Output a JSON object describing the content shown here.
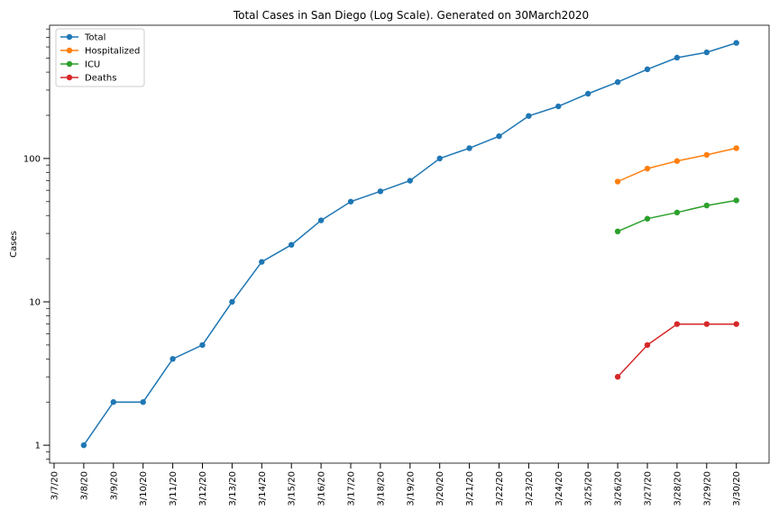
{
  "chart_data": {
    "type": "line",
    "title": "Total Cases in San Diego (Log Scale). Generated on 30March2020",
    "xlabel": "",
    "ylabel": "Cases",
    "yscale": "log",
    "ylim": [
      0.75,
      850
    ],
    "categories": [
      "3/7/20",
      "3/8/20",
      "3/9/20",
      "3/10/20",
      "3/11/20",
      "3/12/20",
      "3/13/20",
      "3/14/20",
      "3/15/20",
      "3/16/20",
      "3/17/20",
      "3/18/20",
      "3/19/20",
      "3/20/20",
      "3/21/20",
      "3/22/20",
      "3/23/20",
      "3/24/20",
      "3/25/20",
      "3/26/20",
      "3/27/20",
      "3/28/20",
      "3/29/20",
      "3/30/20"
    ],
    "yticks": [
      {
        "value": 1,
        "label": "1"
      },
      {
        "value": 10,
        "label": "10"
      },
      {
        "value": 100,
        "label": "100"
      }
    ],
    "legend_position": "top-left",
    "series": [
      {
        "name": "Total",
        "color": "#1f77b4",
        "values": [
          null,
          1,
          2,
          2,
          4,
          5,
          10,
          19,
          25,
          37,
          50,
          59,
          70,
          100,
          118,
          143,
          198,
          231,
          283,
          341,
          419,
          505,
          550,
          640
        ]
      },
      {
        "name": "Hospitalized",
        "color": "#ff7f0e",
        "values": [
          null,
          null,
          null,
          null,
          null,
          null,
          null,
          null,
          null,
          null,
          null,
          null,
          null,
          null,
          null,
          null,
          null,
          null,
          null,
          69,
          85,
          96,
          106,
          118
        ]
      },
      {
        "name": "ICU",
        "color": "#2ca02c",
        "values": [
          null,
          null,
          null,
          null,
          null,
          null,
          null,
          null,
          null,
          null,
          null,
          null,
          null,
          null,
          null,
          null,
          null,
          null,
          null,
          31,
          38,
          42,
          47,
          51
        ]
      },
      {
        "name": "Deaths",
        "color": "#d62728",
        "values": [
          null,
          null,
          null,
          null,
          null,
          null,
          null,
          null,
          null,
          null,
          null,
          null,
          null,
          null,
          null,
          null,
          null,
          null,
          null,
          3,
          5,
          7,
          7,
          7
        ]
      }
    ]
  }
}
